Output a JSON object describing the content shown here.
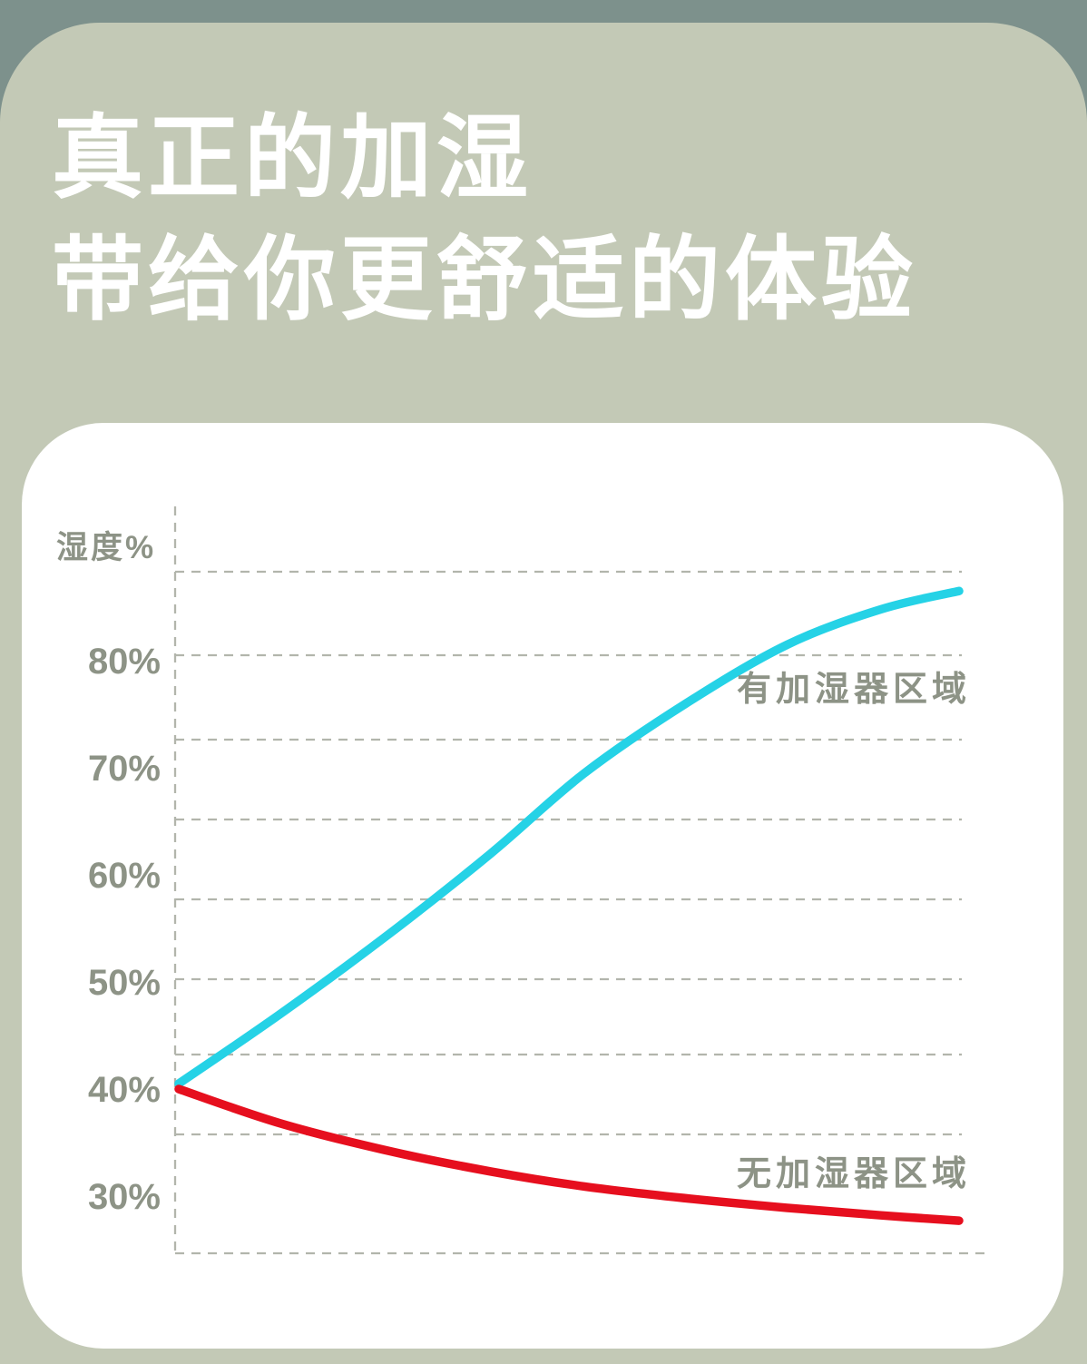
{
  "page": {
    "background_color": "#7d918c",
    "panel_color": "#c3c9b6",
    "card_color": "#ffffff"
  },
  "heading": {
    "line1": "真正的加湿",
    "line2": "带给你更舒适的体验",
    "color": "#ffffff"
  },
  "chart_data": {
    "type": "line",
    "title": "",
    "xlabel": "",
    "ylabel": "湿度%",
    "y_unit": "%",
    "y_ticks": [
      {
        "label": "80%",
        "value": 80
      },
      {
        "label": "70%",
        "value": 70
      },
      {
        "label": "60%",
        "value": 60
      },
      {
        "label": "50%",
        "value": 50
      },
      {
        "label": "40%",
        "value": 40
      },
      {
        "label": "30%",
        "value": 30
      }
    ],
    "y_range_shown": [
      25,
      88
    ],
    "x_range": [
      0,
      100
    ],
    "grid": "dashed horizontal gridlines, dashed y-axis and x-axis, no right/top border",
    "legend_position": "inline labels beside each line",
    "line_colors": {
      "with_humidifier": "#25d2e6",
      "without_humidifier": "#e60f1e"
    },
    "dash_color": "#b2b5ac",
    "text_color": "#8d9386",
    "series": [
      {
        "name": "有加湿器区域",
        "color": "#25d2e6",
        "points": [
          [
            0,
            40.5
          ],
          [
            13,
            47
          ],
          [
            27,
            54.5
          ],
          [
            40,
            62
          ],
          [
            52,
            69.5
          ],
          [
            65,
            76
          ],
          [
            78,
            81.5
          ],
          [
            90,
            84.8
          ],
          [
            100,
            86.5
          ]
        ]
      },
      {
        "name": "无加湿器区域",
        "color": "#e60f1e",
        "points": [
          [
            0,
            40
          ],
          [
            13,
            36.8
          ],
          [
            27,
            34.2
          ],
          [
            40,
            32.3
          ],
          [
            52,
            30.9
          ],
          [
            65,
            29.8
          ],
          [
            78,
            28.9
          ],
          [
            90,
            28.2
          ],
          [
            100,
            27.7
          ]
        ]
      }
    ]
  }
}
